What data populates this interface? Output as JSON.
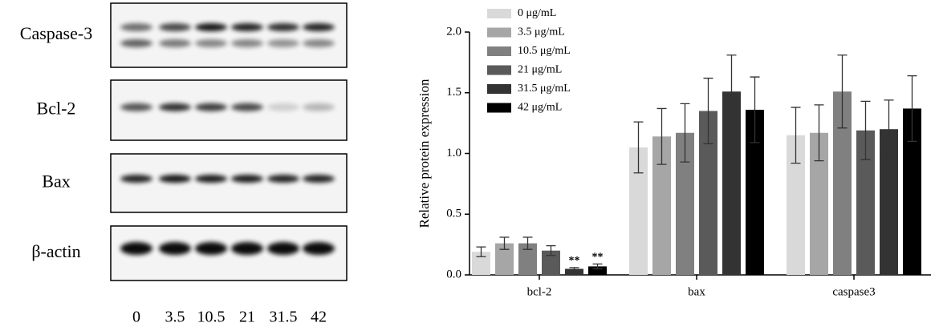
{
  "blot": {
    "rows": [
      "Caspase-3",
      "Bcl-2",
      "Bax",
      "β-actin"
    ],
    "lanes": [
      "0",
      "3.5",
      "10.5",
      "21",
      "31.5",
      "42"
    ]
  },
  "chart_data": {
    "type": "bar",
    "ylabel": "Relative protein expression",
    "categories": [
      "bcl-2",
      "bax",
      "caspase3"
    ],
    "series": [
      {
        "name": "0 μg/mL",
        "color": "#d9d9d9",
        "values": [
          0.19,
          1.05,
          1.15
        ],
        "errors": [
          0.04,
          0.21,
          0.23
        ]
      },
      {
        "name": "3.5 μg/mL",
        "color": "#a6a6a6",
        "values": [
          0.26,
          1.14,
          1.17
        ],
        "errors": [
          0.05,
          0.23,
          0.23
        ]
      },
      {
        "name": "10.5 μg/mL",
        "color": "#808080",
        "values": [
          0.26,
          1.17,
          1.51
        ],
        "errors": [
          0.05,
          0.24,
          0.3
        ]
      },
      {
        "name": "21 μg/mL",
        "color": "#5a5a5a",
        "values": [
          0.2,
          1.35,
          1.19
        ],
        "errors": [
          0.04,
          0.27,
          0.24
        ]
      },
      {
        "name": "31.5 μg/mL",
        "color": "#333333",
        "values": [
          0.05,
          1.51,
          1.2
        ],
        "errors": [
          0.01,
          0.3,
          0.24
        ]
      },
      {
        "name": "42 μg/mL",
        "color": "#000000",
        "values": [
          0.07,
          1.36,
          1.37
        ],
        "errors": [
          0.02,
          0.27,
          0.27
        ]
      }
    ],
    "annotations": [
      {
        "text": "**",
        "series": 4,
        "category": 0
      },
      {
        "text": "**",
        "series": 5,
        "category": 0
      }
    ],
    "ylim": [
      0,
      2
    ],
    "yticks": [
      {
        "value": 0,
        "label": "0.0"
      },
      0.5,
      {
        "value": 1,
        "label": "1.0"
      },
      1.5,
      {
        "value": 2,
        "label": "2.0"
      }
    ],
    "legend": "top-left"
  }
}
